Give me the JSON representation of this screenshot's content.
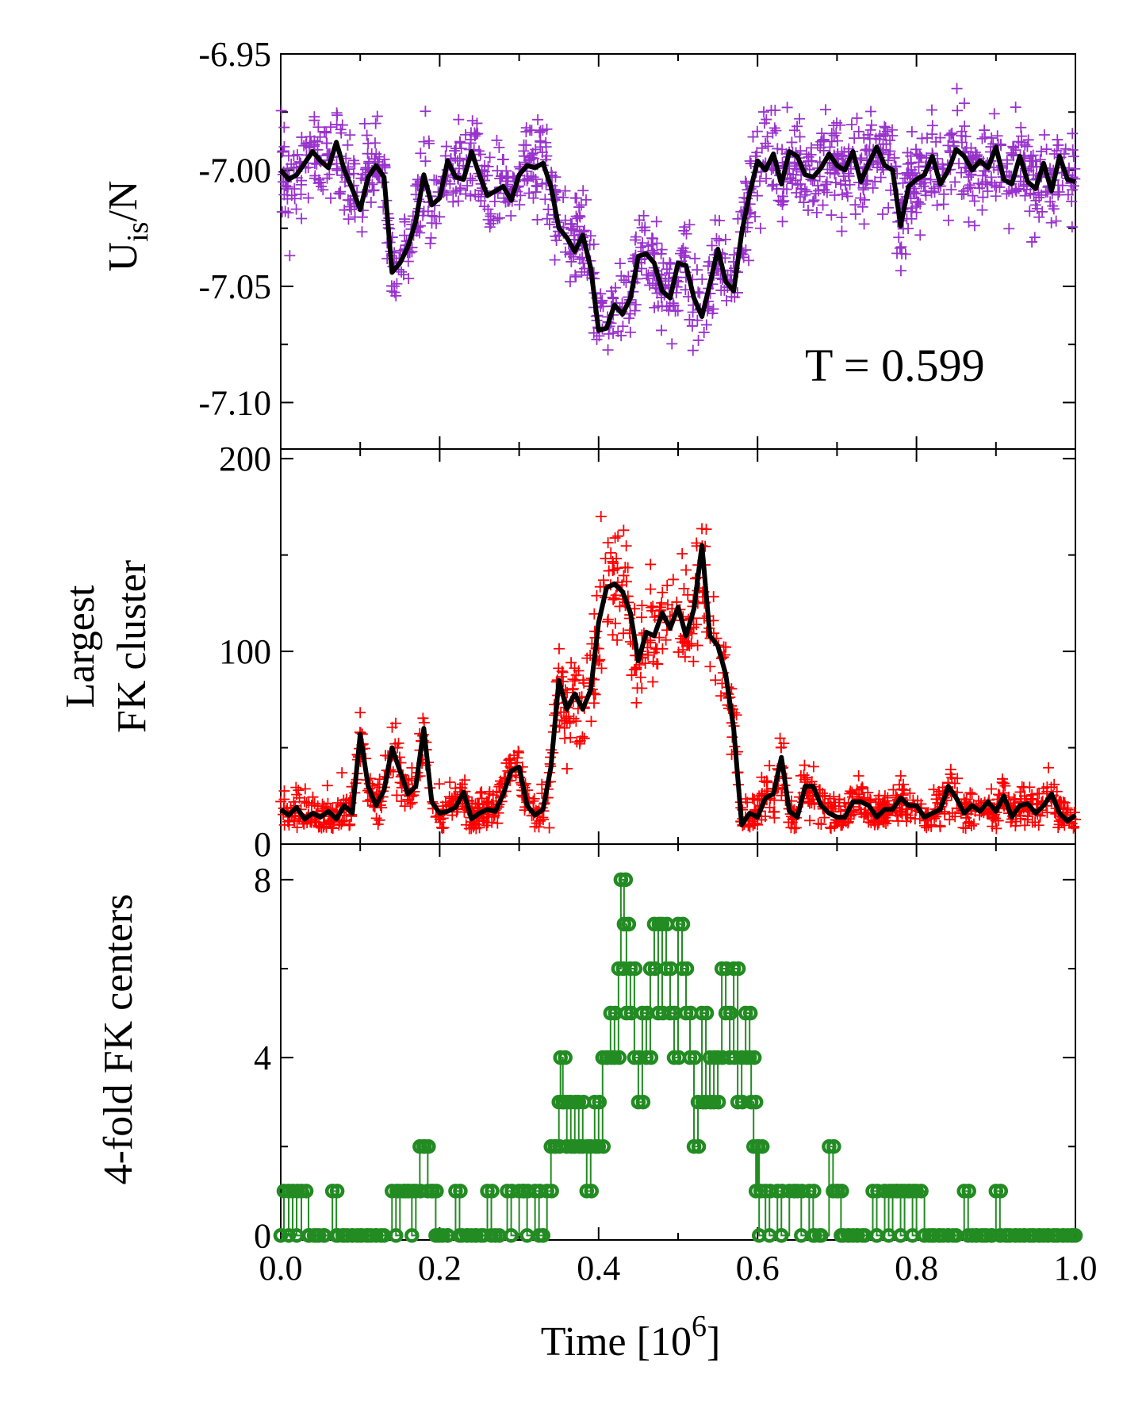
{
  "chart_data": [
    {
      "type": "scatter",
      "panel": "top",
      "ylabel": "U_is/N",
      "ylabel_parts": {
        "main": "U",
        "subscript": "is",
        "suffix": "/N"
      },
      "ylim": [
        -7.12,
        -6.95
      ],
      "yticks": [
        -6.95,
        -7.0,
        -7.05,
        -7.1
      ],
      "ytick_labels": [
        "-6.95",
        "-7.00",
        "-7.05",
        "-7.10"
      ],
      "annotation": "T = 0.599",
      "series": [
        {
          "name": "raw",
          "marker": "plus",
          "color": "#9932cc",
          "description": "noisy samples scattered about the smoothed curve"
        },
        {
          "name": "smoothed",
          "marker": "line",
          "color": "#000000",
          "x": [
            0.0,
            0.01,
            0.02,
            0.03,
            0.04,
            0.05,
            0.06,
            0.07,
            0.08,
            0.09,
            0.1,
            0.11,
            0.12,
            0.13,
            0.14,
            0.15,
            0.16,
            0.17,
            0.18,
            0.19,
            0.2,
            0.21,
            0.22,
            0.23,
            0.24,
            0.25,
            0.26,
            0.27,
            0.28,
            0.29,
            0.3,
            0.31,
            0.32,
            0.33,
            0.34,
            0.35,
            0.36,
            0.37,
            0.38,
            0.39,
            0.4,
            0.41,
            0.42,
            0.43,
            0.44,
            0.45,
            0.46,
            0.47,
            0.48,
            0.49,
            0.5,
            0.51,
            0.52,
            0.53,
            0.54,
            0.55,
            0.56,
            0.57,
            0.58,
            0.59,
            0.6,
            0.61,
            0.62,
            0.63,
            0.64,
            0.65,
            0.66,
            0.67,
            0.68,
            0.69,
            0.7,
            0.71,
            0.72,
            0.73,
            0.74,
            0.75,
            0.76,
            0.77,
            0.78,
            0.79,
            0.8,
            0.81,
            0.82,
            0.83,
            0.84,
            0.85,
            0.86,
            0.87,
            0.88,
            0.89,
            0.9,
            0.91,
            0.92,
            0.93,
            0.94,
            0.95,
            0.96,
            0.97,
            0.98,
            0.99,
            1.0
          ],
          "y": [
            -7.0,
            -7.004,
            -7.002,
            -6.997,
            -6.992,
            -6.996,
            -6.999,
            -6.988,
            -7.0,
            -7.008,
            -7.017,
            -7.003,
            -6.998,
            -7.003,
            -7.044,
            -7.04,
            -7.033,
            -7.022,
            -7.002,
            -7.015,
            -7.012,
            -6.996,
            -7.003,
            -7.004,
            -6.992,
            -7.002,
            -7.011,
            -7.009,
            -7.007,
            -7.013,
            -7.002,
            -6.998,
            -6.999,
            -6.997,
            -7.007,
            -7.025,
            -7.029,
            -7.035,
            -7.028,
            -7.042,
            -7.069,
            -7.068,
            -7.058,
            -7.062,
            -7.055,
            -7.037,
            -7.036,
            -7.04,
            -7.052,
            -7.055,
            -7.04,
            -7.041,
            -7.055,
            -7.063,
            -7.049,
            -7.034,
            -7.048,
            -7.052,
            -7.027,
            -7.01,
            -6.996,
            -7.0,
            -6.993,
            -7.006,
            -6.992,
            -6.994,
            -7.002,
            -7.003,
            -6.999,
            -6.993,
            -6.998,
            -7.0,
            -6.992,
            -7.005,
            -6.997,
            -6.99,
            -6.998,
            -7.0,
            -7.024,
            -7.007,
            -7.004,
            -7.002,
            -6.994,
            -7.006,
            -7.0,
            -6.991,
            -6.994,
            -7.0,
            -6.996,
            -6.999,
            -6.99,
            -7.004,
            -7.006,
            -6.994,
            -7.005,
            -7.008,
            -6.997,
            -7.009,
            -6.994,
            -7.004,
            -7.005
          ]
        }
      ]
    },
    {
      "type": "scatter",
      "panel": "middle",
      "ylabel": "Largest FK cluster",
      "ylabel_lines": [
        "Largest",
        "FK cluster"
      ],
      "ylim": [
        0,
        205
      ],
      "yticks": [
        0,
        100,
        200
      ],
      "ytick_labels": [
        "0",
        "100",
        "200"
      ],
      "series": [
        {
          "name": "raw",
          "marker": "plus",
          "color": "#ff0000",
          "description": "noisy samples scattered about the smoothed curve"
        },
        {
          "name": "smoothed",
          "marker": "line",
          "color": "#000000",
          "x": [
            0.0,
            0.01,
            0.02,
            0.03,
            0.04,
            0.05,
            0.06,
            0.07,
            0.08,
            0.09,
            0.1,
            0.11,
            0.12,
            0.13,
            0.14,
            0.15,
            0.16,
            0.17,
            0.18,
            0.19,
            0.2,
            0.21,
            0.22,
            0.23,
            0.24,
            0.25,
            0.26,
            0.27,
            0.28,
            0.29,
            0.3,
            0.31,
            0.32,
            0.33,
            0.34,
            0.35,
            0.36,
            0.37,
            0.38,
            0.39,
            0.4,
            0.41,
            0.42,
            0.43,
            0.44,
            0.45,
            0.46,
            0.47,
            0.48,
            0.49,
            0.5,
            0.51,
            0.52,
            0.53,
            0.54,
            0.55,
            0.56,
            0.57,
            0.58,
            0.59,
            0.6,
            0.61,
            0.62,
            0.63,
            0.64,
            0.65,
            0.66,
            0.67,
            0.68,
            0.69,
            0.7,
            0.71,
            0.72,
            0.73,
            0.74,
            0.75,
            0.76,
            0.77,
            0.78,
            0.79,
            0.8,
            0.81,
            0.82,
            0.83,
            0.84,
            0.85,
            0.86,
            0.87,
            0.88,
            0.89,
            0.9,
            0.91,
            0.92,
            0.93,
            0.94,
            0.95,
            0.96,
            0.97,
            0.98,
            0.99,
            1.0
          ],
          "y": [
            18,
            15,
            19,
            13,
            16,
            14,
            17,
            13,
            20,
            16,
            57,
            30,
            20,
            28,
            50,
            38,
            26,
            30,
            60,
            22,
            16,
            17,
            19,
            27,
            13,
            16,
            18,
            17,
            26,
            38,
            40,
            20,
            15,
            18,
            40,
            85,
            70,
            78,
            70,
            80,
            115,
            133,
            135,
            131,
            120,
            95,
            110,
            108,
            120,
            112,
            123,
            108,
            122,
            155,
            108,
            103,
            88,
            60,
            10,
            16,
            14,
            24,
            26,
            45,
            17,
            14,
            30,
            30,
            20,
            16,
            14,
            14,
            22,
            22,
            20,
            14,
            18,
            18,
            24,
            20,
            20,
            14,
            16,
            18,
            30,
            24,
            16,
            20,
            17,
            22,
            17,
            25,
            14,
            20,
            21,
            16,
            20,
            26,
            16,
            12,
            15
          ]
        }
      ]
    },
    {
      "type": "line",
      "panel": "bottom",
      "ylabel": "4-fold FK centers",
      "xlabel": "Time [10^6]",
      "xlabel_parts": {
        "main": "Time [10",
        "superscript": "6",
        "suffix": "]"
      },
      "xlim": [
        0.0,
        1.0
      ],
      "xticks": [
        0.0,
        0.2,
        0.4,
        0.6,
        0.8,
        1.0
      ],
      "xtick_labels": [
        "0.0",
        "0.2",
        "0.4",
        "0.6",
        "0.8",
        "1.0"
      ],
      "ylim": [
        -0.1,
        8.8
      ],
      "yticks": [
        0,
        4,
        8
      ],
      "ytick_labels": [
        "0",
        "4",
        "8"
      ],
      "series": [
        {
          "name": "4-fold FK centers",
          "marker": "circle",
          "color": "#228b22",
          "points": [
            [
              0.0,
              0
            ],
            [
              0.004,
              1
            ],
            [
              0.01,
              0
            ],
            [
              0.015,
              1
            ],
            [
              0.02,
              0
            ],
            [
              0.026,
              1
            ],
            [
              0.035,
              0
            ],
            [
              0.045,
              0
            ],
            [
              0.055,
              0
            ],
            [
              0.065,
              1
            ],
            [
              0.07,
              0
            ],
            [
              0.08,
              0
            ],
            [
              0.09,
              0
            ],
            [
              0.1,
              0
            ],
            [
              0.11,
              0
            ],
            [
              0.12,
              0
            ],
            [
              0.13,
              0
            ],
            [
              0.14,
              1
            ],
            [
              0.145,
              0
            ],
            [
              0.15,
              1
            ],
            [
              0.155,
              1
            ],
            [
              0.16,
              1
            ],
            [
              0.165,
              0
            ],
            [
              0.17,
              1
            ],
            [
              0.175,
              2
            ],
            [
              0.18,
              2
            ],
            [
              0.185,
              1
            ],
            [
              0.19,
              1
            ],
            [
              0.195,
              0
            ],
            [
              0.2,
              0
            ],
            [
              0.21,
              0
            ],
            [
              0.22,
              1
            ],
            [
              0.225,
              0
            ],
            [
              0.235,
              0
            ],
            [
              0.245,
              0
            ],
            [
              0.255,
              0
            ],
            [
              0.26,
              1
            ],
            [
              0.265,
              0
            ],
            [
              0.275,
              0
            ],
            [
              0.285,
              1
            ],
            [
              0.29,
              0
            ],
            [
              0.3,
              1
            ],
            [
              0.305,
              1
            ],
            [
              0.31,
              0
            ],
            [
              0.32,
              1
            ],
            [
              0.325,
              0
            ],
            [
              0.33,
              0
            ],
            [
              0.335,
              1
            ],
            [
              0.34,
              2
            ],
            [
              0.345,
              2
            ],
            [
              0.35,
              3
            ],
            [
              0.352,
              4
            ],
            [
              0.355,
              3
            ],
            [
              0.36,
              2
            ],
            [
              0.365,
              3
            ],
            [
              0.37,
              2
            ],
            [
              0.375,
              3
            ],
            [
              0.38,
              2
            ],
            [
              0.385,
              1
            ],
            [
              0.39,
              2
            ],
            [
              0.395,
              3
            ],
            [
              0.4,
              2
            ],
            [
              0.405,
              4
            ],
            [
              0.41,
              4
            ],
            [
              0.415,
              5
            ],
            [
              0.42,
              4
            ],
            [
              0.425,
              6
            ],
            [
              0.428,
              8
            ],
            [
              0.432,
              7
            ],
            [
              0.435,
              5
            ],
            [
              0.44,
              6
            ],
            [
              0.445,
              4
            ],
            [
              0.45,
              3
            ],
            [
              0.455,
              5
            ],
            [
              0.46,
              4
            ],
            [
              0.465,
              6
            ],
            [
              0.47,
              7
            ],
            [
              0.475,
              5
            ],
            [
              0.48,
              7
            ],
            [
              0.485,
              6
            ],
            [
              0.49,
              5
            ],
            [
              0.495,
              4
            ],
            [
              0.5,
              7
            ],
            [
              0.505,
              6
            ],
            [
              0.51,
              5
            ],
            [
              0.515,
              4
            ],
            [
              0.52,
              2
            ],
            [
              0.525,
              3
            ],
            [
              0.53,
              5
            ],
            [
              0.535,
              3
            ],
            [
              0.54,
              4
            ],
            [
              0.545,
              3
            ],
            [
              0.55,
              4
            ],
            [
              0.555,
              6
            ],
            [
              0.56,
              5
            ],
            [
              0.565,
              4
            ],
            [
              0.57,
              6
            ],
            [
              0.575,
              3
            ],
            [
              0.58,
              4
            ],
            [
              0.585,
              5
            ],
            [
              0.59,
              4
            ],
            [
              0.592,
              3
            ],
            [
              0.595,
              2
            ],
            [
              0.598,
              1
            ],
            [
              0.6,
              2
            ],
            [
              0.602,
              0
            ],
            [
              0.61,
              1
            ],
            [
              0.615,
              0
            ],
            [
              0.625,
              1
            ],
            [
              0.63,
              0
            ],
            [
              0.64,
              1
            ],
            [
              0.65,
              1
            ],
            [
              0.655,
              0
            ],
            [
              0.665,
              1
            ],
            [
              0.67,
              0
            ],
            [
              0.68,
              0
            ],
            [
              0.69,
              2
            ],
            [
              0.695,
              1
            ],
            [
              0.7,
              1
            ],
            [
              0.705,
              0
            ],
            [
              0.715,
              0
            ],
            [
              0.725,
              0
            ],
            [
              0.735,
              0
            ],
            [
              0.745,
              1
            ],
            [
              0.75,
              0
            ],
            [
              0.76,
              1
            ],
            [
              0.765,
              0
            ],
            [
              0.77,
              1
            ],
            [
              0.775,
              1
            ],
            [
              0.78,
              0
            ],
            [
              0.785,
              1
            ],
            [
              0.79,
              1
            ],
            [
              0.795,
              0
            ],
            [
              0.8,
              1
            ],
            [
              0.81,
              0
            ],
            [
              0.82,
              0
            ],
            [
              0.83,
              0
            ],
            [
              0.84,
              0
            ],
            [
              0.85,
              0
            ],
            [
              0.86,
              1
            ],
            [
              0.865,
              0
            ],
            [
              0.875,
              0
            ],
            [
              0.885,
              0
            ],
            [
              0.895,
              0
            ],
            [
              0.9,
              1
            ],
            [
              0.905,
              0
            ],
            [
              0.915,
              0
            ],
            [
              0.925,
              0
            ],
            [
              0.935,
              0
            ],
            [
              0.945,
              0
            ],
            [
              0.955,
              0
            ],
            [
              0.965,
              0
            ],
            [
              0.975,
              0
            ],
            [
              0.985,
              0
            ],
            [
              0.995,
              0
            ],
            [
              1.0,
              0
            ]
          ]
        }
      ]
    }
  ]
}
